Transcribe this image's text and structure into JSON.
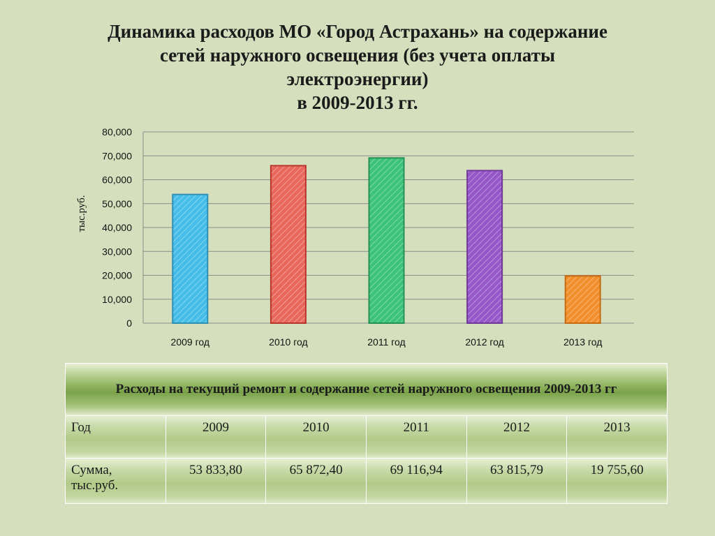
{
  "title_lines": [
    "Динамика расходов МО «Город Астрахань» на содержание",
    "сетей наружного освещения (без учета оплаты",
    "электроэнергии)",
    "в 2009-2013 гг."
  ],
  "chart_data": {
    "type": "bar",
    "categories": [
      "2009 год",
      "2010 год",
      "2011 год",
      "2012 год",
      "2013 год"
    ],
    "values": [
      53833.8,
      65872.4,
      69116.94,
      63815.79,
      19755.6
    ],
    "ylabel": "тыс.руб.",
    "ylim": [
      0,
      80000
    ],
    "yticks": [
      0,
      10000,
      20000,
      30000,
      40000,
      50000,
      60000,
      70000,
      80000
    ],
    "ytick_labels": [
      "0",
      "10,000",
      "20,000",
      "30,000",
      "40,000",
      "50,000",
      "60,000",
      "70,000",
      "80,000"
    ],
    "grid": true,
    "colors": [
      "#46bde8",
      "#e8685c",
      "#3cc279",
      "#9658c8",
      "#f08f2c"
    ],
    "edge_colors": [
      "#2d8fb3",
      "#b8352c",
      "#239055",
      "#6d3a99",
      "#c76a12"
    ]
  },
  "table": {
    "header": "Расходы на текущий ремонт и содержание сетей наружного освещения 2009-2013 гг",
    "rows": [
      [
        "Год",
        "2009",
        "2010",
        "2011",
        "2012",
        "2013"
      ],
      [
        "Сумма, тыс.руб.",
        "53 833,80",
        "65 872,40",
        "69 116,94",
        "63 815,79",
        "19 755,60"
      ]
    ]
  }
}
